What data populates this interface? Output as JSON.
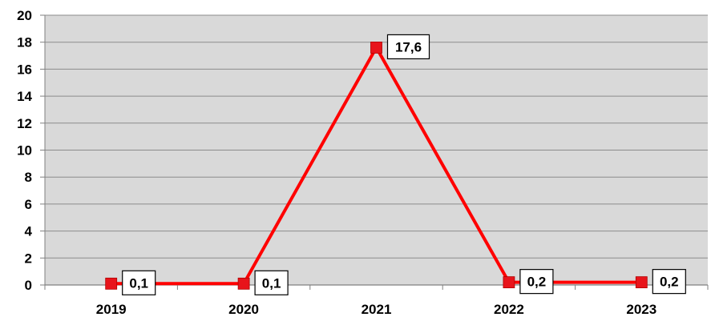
{
  "chart_data": {
    "type": "line",
    "categories": [
      "2019",
      "2020",
      "2021",
      "2022",
      "2023"
    ],
    "values": [
      0.1,
      0.1,
      17.6,
      0.2,
      0.2
    ],
    "data_labels": [
      "0,1",
      "0,1",
      "17,6",
      "0,2",
      "0,2"
    ],
    "y_ticks": [
      "0",
      "2",
      "4",
      "6",
      "8",
      "10",
      "12",
      "14",
      "16",
      "18",
      "20"
    ],
    "ylim": [
      0,
      20
    ],
    "grid": true,
    "legend": "none",
    "colors": {
      "series": "#ff0000",
      "marker": "#e8141b",
      "plot_background": "#d9d9d9",
      "gridline": "#8c8c8c"
    }
  }
}
